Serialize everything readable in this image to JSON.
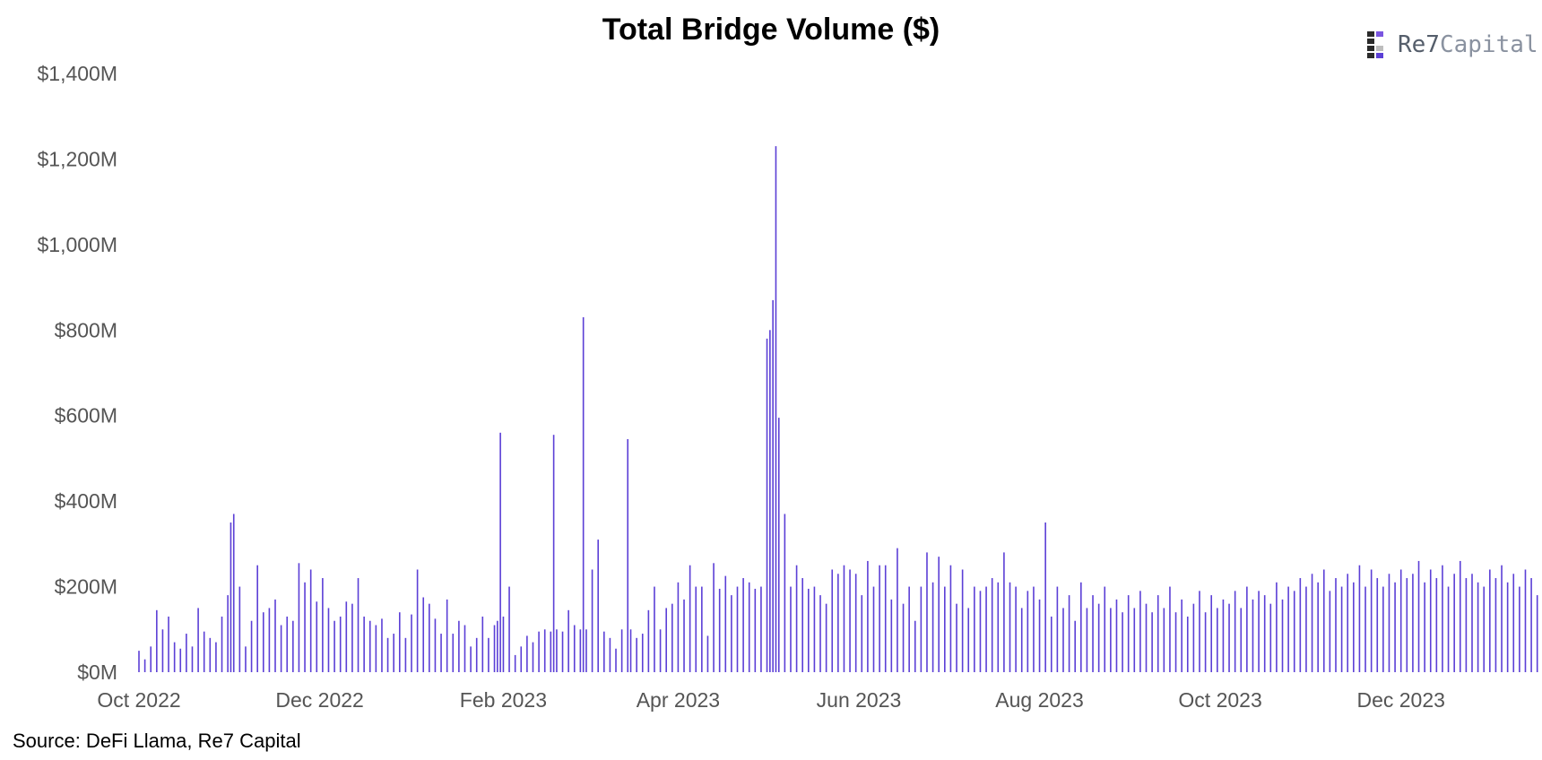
{
  "chart_data": {
    "type": "bar",
    "title": "Total Bridge Volume ($)",
    "xlabel": "",
    "ylabel": "",
    "x_start": "2022-10-01",
    "x_end": "2024-01-17",
    "ylim": [
      0,
      1400
    ],
    "y_ticks": [
      "$0M",
      "$200M",
      "$400M",
      "$600M",
      "$800M",
      "$1,000M",
      "$1,200M",
      "$1,400M"
    ],
    "x_ticks": [
      {
        "date": "2022-10-01",
        "label": "Oct 2022"
      },
      {
        "date": "2022-12-01",
        "label": "Dec 2022"
      },
      {
        "date": "2023-02-01",
        "label": "Feb 2023"
      },
      {
        "date": "2023-04-01",
        "label": "Apr 2023"
      },
      {
        "date": "2023-06-01",
        "label": "Jun 2023"
      },
      {
        "date": "2023-08-01",
        "label": "Aug 2023"
      },
      {
        "date": "2023-10-01",
        "label": "Oct 2023"
      },
      {
        "date": "2023-12-01",
        "label": "Dec 2023"
      }
    ],
    "bar_color": "#5b3fd6",
    "grid": false,
    "legend": "none",
    "points": [
      [
        "2022-10-01",
        50
      ],
      [
        "2022-10-03",
        30
      ],
      [
        "2022-10-05",
        60
      ],
      [
        "2022-10-07",
        145
      ],
      [
        "2022-10-09",
        100
      ],
      [
        "2022-10-11",
        130
      ],
      [
        "2022-10-13",
        70
      ],
      [
        "2022-10-15",
        55
      ],
      [
        "2022-10-17",
        90
      ],
      [
        "2022-10-19",
        60
      ],
      [
        "2022-10-21",
        150
      ],
      [
        "2022-10-23",
        95
      ],
      [
        "2022-10-25",
        80
      ],
      [
        "2022-10-27",
        70
      ],
      [
        "2022-10-29",
        130
      ],
      [
        "2022-10-31",
        180
      ],
      [
        "2022-11-01",
        350
      ],
      [
        "2022-11-02",
        370
      ],
      [
        "2022-11-04",
        200
      ],
      [
        "2022-11-06",
        60
      ],
      [
        "2022-11-08",
        120
      ],
      [
        "2022-11-10",
        250
      ],
      [
        "2022-11-12",
        140
      ],
      [
        "2022-11-14",
        150
      ],
      [
        "2022-11-16",
        170
      ],
      [
        "2022-11-18",
        110
      ],
      [
        "2022-11-20",
        130
      ],
      [
        "2022-11-22",
        120
      ],
      [
        "2022-11-24",
        255
      ],
      [
        "2022-11-26",
        210
      ],
      [
        "2022-11-28",
        240
      ],
      [
        "2022-11-30",
        165
      ],
      [
        "2022-12-02",
        220
      ],
      [
        "2022-12-04",
        150
      ],
      [
        "2022-12-06",
        120
      ],
      [
        "2022-12-08",
        130
      ],
      [
        "2022-12-10",
        165
      ],
      [
        "2022-12-12",
        160
      ],
      [
        "2022-12-14",
        220
      ],
      [
        "2022-12-16",
        130
      ],
      [
        "2022-12-18",
        120
      ],
      [
        "2022-12-20",
        110
      ],
      [
        "2022-12-22",
        125
      ],
      [
        "2022-12-24",
        80
      ],
      [
        "2022-12-26",
        90
      ],
      [
        "2022-12-28",
        140
      ],
      [
        "2022-12-30",
        80
      ],
      [
        "2023-01-01",
        135
      ],
      [
        "2023-01-03",
        240
      ],
      [
        "2023-01-05",
        175
      ],
      [
        "2023-01-07",
        160
      ],
      [
        "2023-01-09",
        125
      ],
      [
        "2023-01-11",
        90
      ],
      [
        "2023-01-13",
        170
      ],
      [
        "2023-01-15",
        90
      ],
      [
        "2023-01-17",
        120
      ],
      [
        "2023-01-19",
        110
      ],
      [
        "2023-01-21",
        60
      ],
      [
        "2023-01-23",
        80
      ],
      [
        "2023-01-25",
        130
      ],
      [
        "2023-01-27",
        80
      ],
      [
        "2023-01-29",
        110
      ],
      [
        "2023-01-30",
        120
      ],
      [
        "2023-01-31",
        560
      ],
      [
        "2023-02-01",
        130
      ],
      [
        "2023-02-03",
        200
      ],
      [
        "2023-02-05",
        40
      ],
      [
        "2023-02-07",
        60
      ],
      [
        "2023-02-09",
        85
      ],
      [
        "2023-02-11",
        70
      ],
      [
        "2023-02-13",
        95
      ],
      [
        "2023-02-15",
        100
      ],
      [
        "2023-02-17",
        95
      ],
      [
        "2023-02-18",
        555
      ],
      [
        "2023-02-19",
        100
      ],
      [
        "2023-02-21",
        95
      ],
      [
        "2023-02-23",
        145
      ],
      [
        "2023-02-25",
        110
      ],
      [
        "2023-02-27",
        100
      ],
      [
        "2023-02-28",
        830
      ],
      [
        "2023-03-01",
        100
      ],
      [
        "2023-03-03",
        240
      ],
      [
        "2023-03-05",
        310
      ],
      [
        "2023-03-07",
        95
      ],
      [
        "2023-03-09",
        80
      ],
      [
        "2023-03-11",
        55
      ],
      [
        "2023-03-13",
        100
      ],
      [
        "2023-03-15",
        545
      ],
      [
        "2023-03-16",
        100
      ],
      [
        "2023-03-18",
        80
      ],
      [
        "2023-03-20",
        90
      ],
      [
        "2023-03-22",
        145
      ],
      [
        "2023-03-24",
        200
      ],
      [
        "2023-03-26",
        100
      ],
      [
        "2023-03-28",
        150
      ],
      [
        "2023-03-30",
        160
      ],
      [
        "2023-04-01",
        210
      ],
      [
        "2023-04-03",
        170
      ],
      [
        "2023-04-05",
        250
      ],
      [
        "2023-04-07",
        200
      ],
      [
        "2023-04-09",
        200
      ],
      [
        "2023-04-11",
        85
      ],
      [
        "2023-04-13",
        255
      ],
      [
        "2023-04-15",
        195
      ],
      [
        "2023-04-17",
        225
      ],
      [
        "2023-04-19",
        180
      ],
      [
        "2023-04-21",
        200
      ],
      [
        "2023-04-23",
        220
      ],
      [
        "2023-04-25",
        210
      ],
      [
        "2023-04-27",
        195
      ],
      [
        "2023-04-29",
        200
      ],
      [
        "2023-05-01",
        780
      ],
      [
        "2023-05-02",
        800
      ],
      [
        "2023-05-03",
        870
      ],
      [
        "2023-05-04",
        1230
      ],
      [
        "2023-05-05",
        595
      ],
      [
        "2023-05-07",
        370
      ],
      [
        "2023-05-09",
        200
      ],
      [
        "2023-05-11",
        250
      ],
      [
        "2023-05-13",
        220
      ],
      [
        "2023-05-15",
        195
      ],
      [
        "2023-05-17",
        200
      ],
      [
        "2023-05-19",
        180
      ],
      [
        "2023-05-21",
        160
      ],
      [
        "2023-05-23",
        240
      ],
      [
        "2023-05-25",
        230
      ],
      [
        "2023-05-27",
        250
      ],
      [
        "2023-05-29",
        240
      ],
      [
        "2023-05-31",
        230
      ],
      [
        "2023-06-02",
        180
      ],
      [
        "2023-06-04",
        260
      ],
      [
        "2023-06-06",
        200
      ],
      [
        "2023-06-08",
        250
      ],
      [
        "2023-06-10",
        250
      ],
      [
        "2023-06-12",
        170
      ],
      [
        "2023-06-14",
        290
      ],
      [
        "2023-06-16",
        160
      ],
      [
        "2023-06-18",
        200
      ],
      [
        "2023-06-20",
        120
      ],
      [
        "2023-06-22",
        200
      ],
      [
        "2023-06-24",
        280
      ],
      [
        "2023-06-26",
        210
      ],
      [
        "2023-06-28",
        270
      ],
      [
        "2023-06-30",
        200
      ],
      [
        "2023-07-02",
        250
      ],
      [
        "2023-07-04",
        160
      ],
      [
        "2023-07-06",
        240
      ],
      [
        "2023-07-08",
        150
      ],
      [
        "2023-07-10",
        200
      ],
      [
        "2023-07-12",
        190
      ],
      [
        "2023-07-14",
        200
      ],
      [
        "2023-07-16",
        220
      ],
      [
        "2023-07-18",
        210
      ],
      [
        "2023-07-20",
        280
      ],
      [
        "2023-07-22",
        210
      ],
      [
        "2023-07-24",
        200
      ],
      [
        "2023-07-26",
        150
      ],
      [
        "2023-07-28",
        190
      ],
      [
        "2023-07-30",
        200
      ],
      [
        "2023-08-01",
        170
      ],
      [
        "2023-08-03",
        350
      ],
      [
        "2023-08-05",
        130
      ],
      [
        "2023-08-07",
        200
      ],
      [
        "2023-08-09",
        150
      ],
      [
        "2023-08-11",
        180
      ],
      [
        "2023-08-13",
        120
      ],
      [
        "2023-08-15",
        210
      ],
      [
        "2023-08-17",
        150
      ],
      [
        "2023-08-19",
        180
      ],
      [
        "2023-08-21",
        160
      ],
      [
        "2023-08-23",
        200
      ],
      [
        "2023-08-25",
        150
      ],
      [
        "2023-08-27",
        170
      ],
      [
        "2023-08-29",
        140
      ],
      [
        "2023-08-31",
        180
      ],
      [
        "2023-09-02",
        150
      ],
      [
        "2023-09-04",
        190
      ],
      [
        "2023-09-06",
        160
      ],
      [
        "2023-09-08",
        140
      ],
      [
        "2023-09-10",
        180
      ],
      [
        "2023-09-12",
        150
      ],
      [
        "2023-09-14",
        200
      ],
      [
        "2023-09-16",
        140
      ],
      [
        "2023-09-18",
        170
      ],
      [
        "2023-09-20",
        130
      ],
      [
        "2023-09-22",
        160
      ],
      [
        "2023-09-24",
        190
      ],
      [
        "2023-09-26",
        140
      ],
      [
        "2023-09-28",
        180
      ],
      [
        "2023-09-30",
        150
      ],
      [
        "2023-10-02",
        170
      ],
      [
        "2023-10-04",
        160
      ],
      [
        "2023-10-06",
        190
      ],
      [
        "2023-10-08",
        150
      ],
      [
        "2023-10-10",
        200
      ],
      [
        "2023-10-12",
        170
      ],
      [
        "2023-10-14",
        190
      ],
      [
        "2023-10-16",
        180
      ],
      [
        "2023-10-18",
        160
      ],
      [
        "2023-10-20",
        210
      ],
      [
        "2023-10-22",
        170
      ],
      [
        "2023-10-24",
        200
      ],
      [
        "2023-10-26",
        190
      ],
      [
        "2023-10-28",
        220
      ],
      [
        "2023-10-30",
        200
      ],
      [
        "2023-11-01",
        230
      ],
      [
        "2023-11-03",
        210
      ],
      [
        "2023-11-05",
        240
      ],
      [
        "2023-11-07",
        190
      ],
      [
        "2023-11-09",
        220
      ],
      [
        "2023-11-11",
        200
      ],
      [
        "2023-11-13",
        230
      ],
      [
        "2023-11-15",
        210
      ],
      [
        "2023-11-17",
        250
      ],
      [
        "2023-11-19",
        200
      ],
      [
        "2023-11-21",
        240
      ],
      [
        "2023-11-23",
        220
      ],
      [
        "2023-11-25",
        200
      ],
      [
        "2023-11-27",
        230
      ],
      [
        "2023-11-29",
        210
      ],
      [
        "2023-12-01",
        240
      ],
      [
        "2023-12-03",
        220
      ],
      [
        "2023-12-05",
        230
      ],
      [
        "2023-12-07",
        260
      ],
      [
        "2023-12-09",
        210
      ],
      [
        "2023-12-11",
        240
      ],
      [
        "2023-12-13",
        220
      ],
      [
        "2023-12-15",
        250
      ],
      [
        "2023-12-17",
        200
      ],
      [
        "2023-12-19",
        230
      ],
      [
        "2023-12-21",
        260
      ],
      [
        "2023-12-23",
        220
      ],
      [
        "2023-12-25",
        230
      ],
      [
        "2023-12-27",
        210
      ],
      [
        "2023-12-29",
        200
      ],
      [
        "2023-12-31",
        240
      ],
      [
        "2024-01-02",
        220
      ],
      [
        "2024-01-04",
        250
      ],
      [
        "2024-01-06",
        210
      ],
      [
        "2024-01-08",
        230
      ],
      [
        "2024-01-10",
        200
      ],
      [
        "2024-01-12",
        240
      ],
      [
        "2024-01-14",
        220
      ],
      [
        "2024-01-16",
        180
      ]
    ]
  },
  "logo": {
    "name": "Re7",
    "suffix": "Capital"
  },
  "source_text": "Source: DeFi Llama, Re7 Capital"
}
